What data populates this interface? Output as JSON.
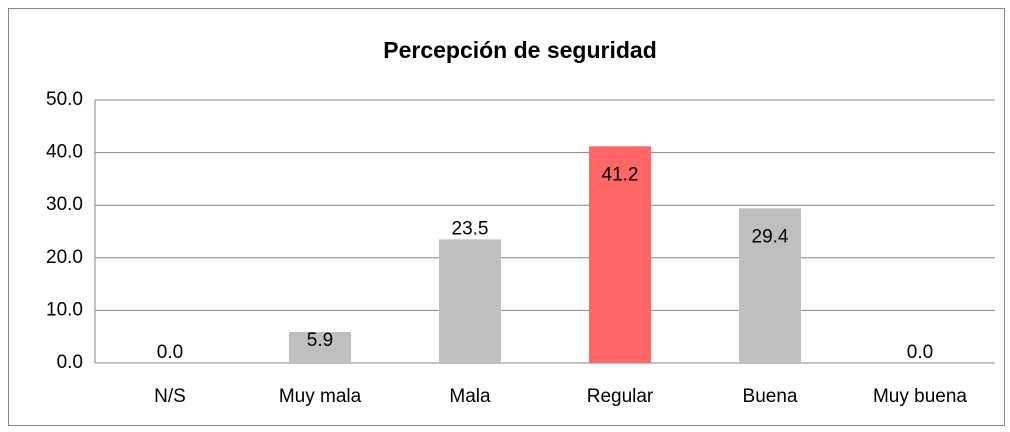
{
  "chart_data": {
    "type": "bar",
    "title": "Percepción de seguridad",
    "categories": [
      "N/S",
      "Muy mala",
      "Mala",
      "Regular",
      "Buena",
      "Muy buena"
    ],
    "values": [
      0,
      5.9,
      23.5,
      41.2,
      29.4,
      0
    ],
    "value_labels": [
      "0.0",
      "5.9",
      "23.5",
      "41.2",
      "29.4",
      "0.0"
    ],
    "colors": [
      "#bfbfbf",
      "#bfbfbf",
      "#bfbfbf",
      "#ff6666",
      "#bfbfbf",
      "#bfbfbf"
    ],
    "ylim": [
      0,
      50
    ],
    "yticks": [
      {
        "value": 0,
        "label": "0.0"
      },
      {
        "value": 10,
        "label": "10.0"
      },
      {
        "value": 20,
        "label": "20.0"
      },
      {
        "value": 30,
        "label": "30.0"
      },
      {
        "value": 40,
        "label": "40.0"
      },
      {
        "value": 50,
        "label": "50.0"
      }
    ],
    "grid": true
  }
}
